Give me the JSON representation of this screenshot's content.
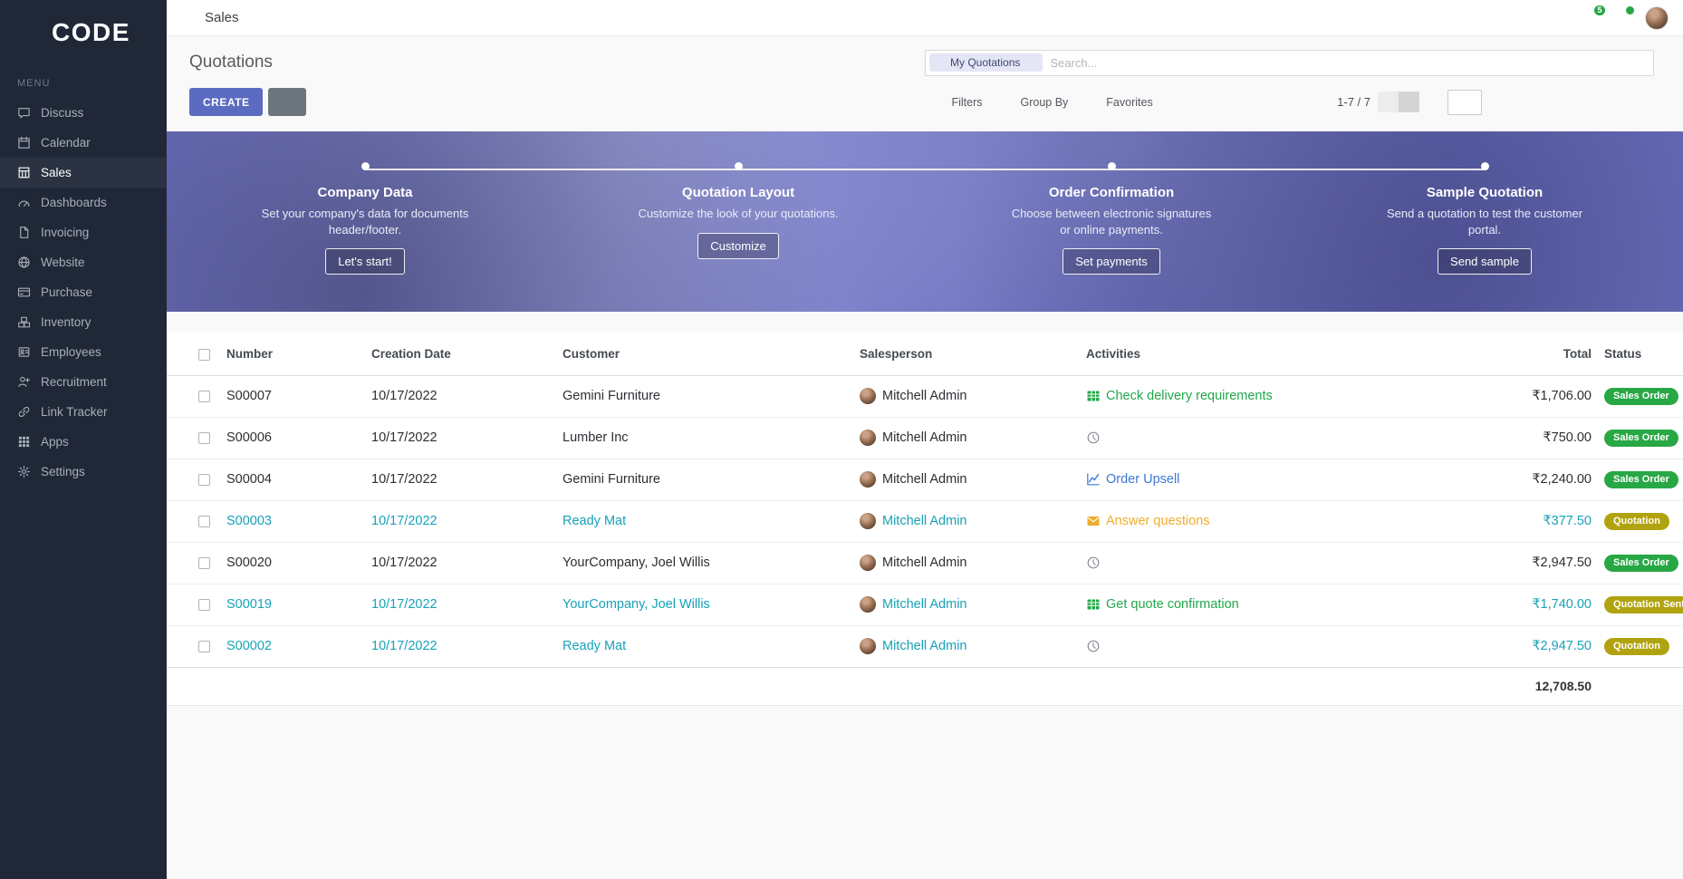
{
  "colors": {
    "primary": "#5b6cc0",
    "sidebar_bg": "#202838",
    "highlight_text": "#17a2b8",
    "status_success": "#28a745",
    "status_warning": "#b0a30f",
    "notification_badge": "#28a745"
  },
  "brand": {
    "name": "CODE"
  },
  "topbar": {
    "app": "Sales",
    "chat_badge": "5"
  },
  "sidebar": {
    "section": "MENU",
    "items": [
      {
        "label": "Discuss",
        "icon": "discuss-icon",
        "active": false
      },
      {
        "label": "Calendar",
        "icon": "calendar-icon",
        "active": false
      },
      {
        "label": "Sales",
        "icon": "sales-icon",
        "active": true
      },
      {
        "label": "Dashboards",
        "icon": "dashboards-icon",
        "active": false
      },
      {
        "label": "Invoicing",
        "icon": "invoicing-icon",
        "active": false
      },
      {
        "label": "Website",
        "icon": "website-icon",
        "active": false
      },
      {
        "label": "Purchase",
        "icon": "purchase-icon",
        "active": false
      },
      {
        "label": "Inventory",
        "icon": "inventory-icon",
        "active": false
      },
      {
        "label": "Employees",
        "icon": "employees-icon",
        "active": false
      },
      {
        "label": "Recruitment",
        "icon": "recruitment-icon",
        "active": false
      },
      {
        "label": "Link Tracker",
        "icon": "link-tracker-icon",
        "active": false
      },
      {
        "label": "Apps",
        "icon": "apps-icon",
        "active": false
      },
      {
        "label": "Settings",
        "icon": "settings-icon",
        "active": false
      }
    ]
  },
  "control": {
    "title": "Quotations",
    "facet": "My Quotations",
    "search_placeholder": "Search...",
    "create": "CREATE",
    "filters": "Filters",
    "group_by": "Group By",
    "favorites": "Favorites",
    "pager": "1-7 / 7"
  },
  "banner": {
    "steps": [
      {
        "title": "Company Data",
        "desc": "Set your company's data for documents header/footer.",
        "button": "Let's start!"
      },
      {
        "title": "Quotation Layout",
        "desc": "Customize the look of your quotations.",
        "button": "Customize"
      },
      {
        "title": "Order Confirmation",
        "desc": "Choose between electronic signatures or online payments.",
        "button": "Set payments"
      },
      {
        "title": "Sample Quotation",
        "desc": "Send a quotation to test the customer portal.",
        "button": "Send sample"
      }
    ]
  },
  "table": {
    "headers": {
      "number": "Number",
      "creation_date": "Creation Date",
      "customer": "Customer",
      "salesperson": "Salesperson",
      "activities": "Activities",
      "total": "Total",
      "status": "Status"
    },
    "rows": [
      {
        "number": "S00007",
        "creation_date": "10/17/2022",
        "customer": "Gemini Furniture",
        "salesperson": "Mitchell Admin",
        "activity_label": "Check delivery requirements",
        "activity_icon": "spreadsheet-activity-icon",
        "total": "₹1,706.00",
        "status": "Sales Order",
        "status_type": "success",
        "highlighted": false
      },
      {
        "number": "S00006",
        "creation_date": "10/17/2022",
        "customer": "Lumber Inc",
        "salesperson": "Mitchell Admin",
        "activity_label": "",
        "activity_icon": "clock-activity-icon",
        "total": "₹750.00",
        "status": "Sales Order",
        "status_type": "success",
        "highlighted": false
      },
      {
        "number": "S00004",
        "creation_date": "10/17/2022",
        "customer": "Gemini Furniture",
        "salesperson": "Mitchell Admin",
        "activity_label": "Order Upsell",
        "activity_icon": "chart-activity-icon",
        "total": "₹2,240.00",
        "status": "Sales Order",
        "status_type": "success",
        "highlighted": false
      },
      {
        "number": "S00003",
        "creation_date": "10/17/2022",
        "customer": "Ready Mat",
        "salesperson": "Mitchell Admin",
        "activity_label": "Answer questions",
        "activity_icon": "envelope-activity-icon",
        "total": "₹377.50",
        "status": "Quotation",
        "status_type": "warning",
        "highlighted": true
      },
      {
        "number": "S00020",
        "creation_date": "10/17/2022",
        "customer": "YourCompany, Joel Willis",
        "salesperson": "Mitchell Admin",
        "activity_label": "",
        "activity_icon": "clock-activity-icon",
        "total": "₹2,947.50",
        "status": "Sales Order",
        "status_type": "success",
        "highlighted": false
      },
      {
        "number": "S00019",
        "creation_date": "10/17/2022",
        "customer": "YourCompany, Joel Willis",
        "salesperson": "Mitchell Admin",
        "activity_label": "Get quote confirmation",
        "activity_icon": "spreadsheet-activity-icon",
        "total": "₹1,740.00",
        "status": "Quotation Sent",
        "status_type": "warning",
        "highlighted": true
      },
      {
        "number": "S00002",
        "creation_date": "10/17/2022",
        "customer": "Ready Mat",
        "salesperson": "Mitchell Admin",
        "activity_label": "",
        "activity_icon": "clock-activity-icon",
        "total": "₹2,947.50",
        "status": "Quotation",
        "status_type": "warning",
        "highlighted": true
      }
    ],
    "sum_total": "12,708.50"
  }
}
